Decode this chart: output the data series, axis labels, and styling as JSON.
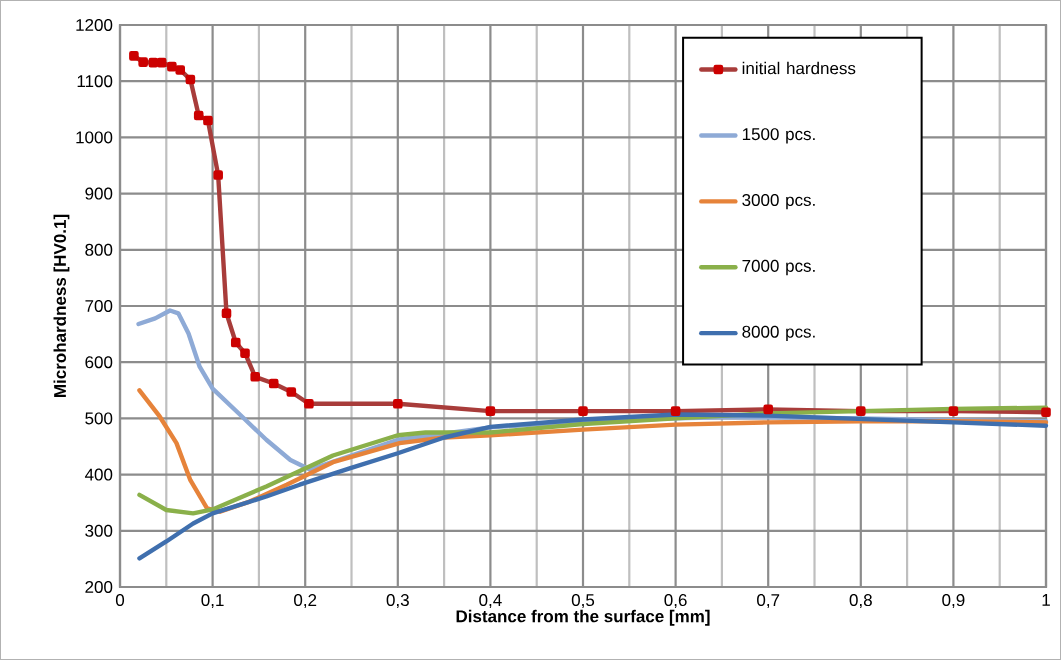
{
  "chart_data": {
    "type": "line",
    "xlabel": "Distance from the surface [mm]",
    "ylabel": "Microhardness [HV0.1]",
    "xlim": [
      0,
      1
    ],
    "ylim": [
      200,
      1200
    ],
    "xticks": [
      0,
      {
        "value": 0.05,
        "label": null
      },
      {
        "value": 0.1,
        "label": "0,1"
      },
      {
        "value": 0.15,
        "label": null
      },
      {
        "value": 0.2,
        "label": "0,2"
      },
      {
        "value": 0.25,
        "label": null
      },
      {
        "value": 0.3,
        "label": "0,3"
      },
      {
        "value": 0.35,
        "label": null
      },
      {
        "value": 0.4,
        "label": "0,4"
      },
      {
        "value": 0.45,
        "label": null
      },
      {
        "value": 0.5,
        "label": "0,5"
      },
      {
        "value": 0.55,
        "label": null
      },
      {
        "value": 0.6,
        "label": "0,6"
      },
      {
        "value": 0.65,
        "label": null
      },
      {
        "value": 0.7,
        "label": "0,7"
      },
      {
        "value": 0.75,
        "label": null
      },
      {
        "value": 0.8,
        "label": "0,8"
      },
      {
        "value": 0.85,
        "label": null
      },
      {
        "value": 0.9,
        "label": "0,9"
      },
      {
        "value": 0.95,
        "label": null
      },
      1
    ],
    "yticks": [
      200,
      300,
      400,
      500,
      600,
      700,
      800,
      900,
      1000,
      1100,
      1200
    ],
    "grid": true,
    "legend": "top right",
    "line_style": "solid",
    "series": [
      {
        "name": "initial hardness",
        "color": "#a83c3a",
        "marker": "square",
        "x": [
          0.015,
          0.025,
          0.036,
          0.045,
          0.056,
          0.065,
          0.076,
          0.085,
          0.095,
          0.106,
          0.115,
          0.125,
          0.135,
          0.146,
          0.166,
          0.185,
          0.204,
          0.3,
          0.4,
          0.5,
          0.6,
          0.7,
          0.8,
          0.9,
          1.0
        ],
        "values": [
          1145,
          1134,
          1133,
          1133,
          1126,
          1120,
          1103,
          1039,
          1030,
          933,
          687,
          635,
          616,
          574,
          562,
          547,
          526,
          526,
          513,
          513,
          513,
          516,
          513,
          513,
          511
        ]
      },
      {
        "name": "1500 pcs.",
        "color": "#8eaad6",
        "marker": "none",
        "x": [
          0.02,
          0.038,
          0.054,
          0.063,
          0.074,
          0.086,
          0.1,
          0.13,
          0.158,
          0.184,
          0.205,
          0.3,
          0.4,
          0.5,
          0.6,
          0.65,
          0.7,
          0.8,
          0.9,
          1.0
        ],
        "values": [
          668,
          678,
          692,
          687,
          651,
          592,
          553,
          506,
          462,
          426,
          409,
          462,
          484,
          495,
          500,
          502,
          502,
          500,
          497,
          495
        ]
      },
      {
        "name": "3000 pcs.",
        "color": "#e6833a",
        "marker": "none",
        "x": [
          0.021,
          0.043,
          0.061,
          0.076,
          0.094,
          0.108,
          0.14,
          0.18,
          0.23,
          0.302,
          0.35,
          0.4,
          0.5,
          0.6,
          0.7,
          0.8,
          0.9,
          1.0
        ],
        "values": [
          550,
          503,
          456,
          390,
          340,
          334,
          352,
          382,
          422,
          456,
          466,
          470,
          480,
          489,
          493,
          495,
          495,
          493
        ]
      },
      {
        "name": "7000 pcs.",
        "color": "#8ab04a",
        "marker": "none",
        "x": [
          0.021,
          0.05,
          0.079,
          0.1,
          0.158,
          0.23,
          0.3,
          0.33,
          0.4,
          0.5,
          0.6,
          0.7,
          0.8,
          0.9,
          1.0
        ],
        "values": [
          364,
          337,
          331,
          338,
          379,
          434,
          470,
          475,
          475,
          490,
          500,
          509,
          513,
          517,
          519
        ]
      },
      {
        "name": "8000 pcs.",
        "color": "#3f6fae",
        "marker": "none",
        "x": [
          0.021,
          0.05,
          0.079,
          0.1,
          0.158,
          0.194,
          0.248,
          0.3,
          0.35,
          0.4,
          0.5,
          0.6,
          0.7,
          0.8,
          0.9,
          1.0
        ],
        "values": [
          251,
          281,
          313,
          331,
          361,
          382,
          411,
          438,
          466,
          485,
          498,
          507,
          505,
          499,
          493,
          487
        ]
      }
    ]
  }
}
